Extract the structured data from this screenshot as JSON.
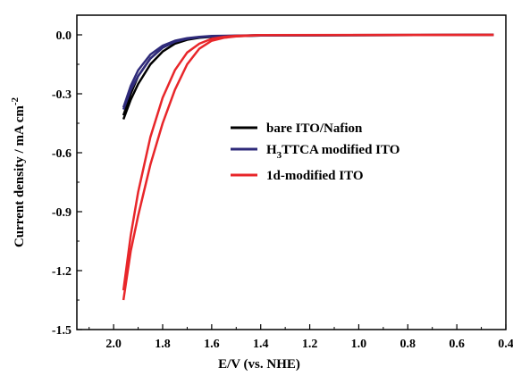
{
  "chart_data": {
    "type": "line",
    "xlabel": "E/V (vs. NHE)",
    "ylabel": "Current density / mA cm⁻²",
    "ylabel_main": "Current density / mA cm",
    "ylabel_sup": "-2",
    "xlim": [
      2.15,
      0.4
    ],
    "ylim": [
      -1.5,
      0.1
    ],
    "x_reversed": true,
    "x_ticks": [
      2.0,
      1.8,
      1.6,
      1.4,
      1.2,
      1.0,
      0.8,
      0.6,
      0.4
    ],
    "x_tick_labels": [
      "2.0",
      "1.8",
      "1.6",
      "1.4",
      "1.2",
      "1.0",
      "0.8",
      "0.6",
      "0.4"
    ],
    "y_ticks": [
      0.0,
      -0.3,
      -0.6,
      -0.9,
      -1.2,
      -1.5
    ],
    "y_tick_labels": [
      "0.0",
      "-0.3",
      "-0.6",
      "-0.9",
      "-1.2",
      "-1.5"
    ],
    "grid": false,
    "legend_position": "center-right",
    "series": [
      {
        "name": "bare ITO/Nafion",
        "legend_main": "bare ITO/Nafion",
        "color": "#000000",
        "x": [
          0.45,
          1.4,
          1.6,
          1.65,
          1.7,
          1.75,
          1.8,
          1.85,
          1.9,
          1.93,
          1.96
        ],
        "y": [
          0.0,
          -0.003,
          -0.01,
          -0.015,
          -0.025,
          -0.045,
          -0.085,
          -0.15,
          -0.25,
          -0.33,
          -0.43
        ],
        "x_return": [
          1.96,
          1.93,
          1.9,
          1.85,
          1.8,
          1.75,
          1.7,
          1.65,
          1.6,
          1.4,
          0.45
        ],
        "y_return": [
          -0.41,
          -0.3,
          -0.21,
          -0.12,
          -0.065,
          -0.035,
          -0.02,
          -0.012,
          -0.008,
          -0.002,
          0.0
        ]
      },
      {
        "name": "H3TTCA modified ITO",
        "legend_main": "H",
        "legend_sub": "3",
        "legend_rest": "TTCA modified ITO",
        "color": "#2e2a7a",
        "x": [
          0.45,
          1.4,
          1.6,
          1.65,
          1.7,
          1.75,
          1.8,
          1.85,
          1.9,
          1.93,
          1.96
        ],
        "y": [
          0.0,
          -0.003,
          -0.008,
          -0.012,
          -0.02,
          -0.035,
          -0.065,
          -0.12,
          -0.21,
          -0.28,
          -0.38
        ],
        "x_return": [
          1.96,
          1.93,
          1.9,
          1.85,
          1.8,
          1.75,
          1.7,
          1.65,
          1.6,
          1.4,
          0.45
        ],
        "y_return": [
          -0.37,
          -0.26,
          -0.18,
          -0.1,
          -0.055,
          -0.03,
          -0.017,
          -0.01,
          -0.006,
          -0.002,
          0.0
        ]
      },
      {
        "name": "1d-modified ITO",
        "legend_main": "1d-modified ITO",
        "color": "#e8262a",
        "x": [
          0.45,
          1.4,
          1.5,
          1.55,
          1.6,
          1.65,
          1.7,
          1.75,
          1.8,
          1.85,
          1.9,
          1.93,
          1.96
        ],
        "y": [
          0.0,
          -0.002,
          -0.008,
          -0.015,
          -0.03,
          -0.07,
          -0.15,
          -0.28,
          -0.45,
          -0.66,
          -0.92,
          -1.1,
          -1.35
        ],
        "x_return": [
          1.96,
          1.93,
          1.9,
          1.85,
          1.8,
          1.75,
          1.7,
          1.65,
          1.6,
          1.55,
          1.5,
          1.4,
          0.45
        ],
        "y_return": [
          -1.3,
          -1.02,
          -0.8,
          -0.52,
          -0.32,
          -0.18,
          -0.09,
          -0.045,
          -0.02,
          -0.01,
          -0.005,
          -0.001,
          0.0
        ]
      }
    ]
  }
}
